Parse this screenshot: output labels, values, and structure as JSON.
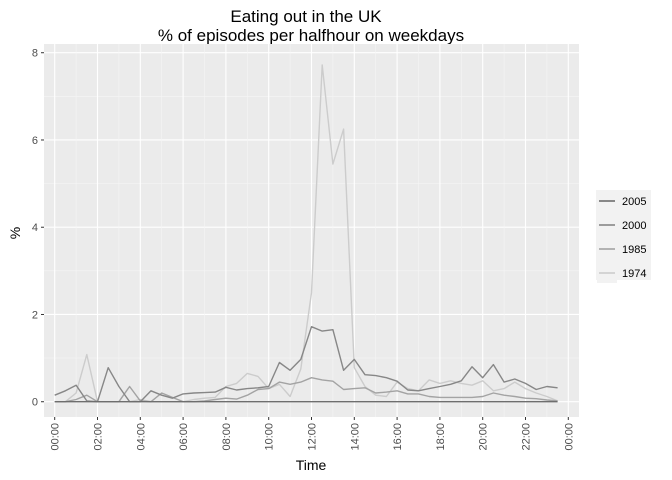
{
  "chart_data": {
    "type": "line",
    "title": "Eating out in the UK",
    "subtitle": "% of episodes per halfhour on weekdays",
    "xlabel": "Time",
    "ylabel": "%",
    "xlim": [
      -0.5,
      24.5
    ],
    "ylim": [
      -0.35,
      8.2
    ],
    "x_ticks": [
      0,
      2,
      4,
      6,
      8,
      10,
      12,
      14,
      16,
      18,
      20,
      22,
      24
    ],
    "x_tick_labels": [
      "00:00",
      "02:00",
      "04:00",
      "06:00",
      "08:00",
      "10:00",
      "12:00",
      "14:00",
      "16:00",
      "18:00",
      "20:00",
      "22:00",
      "00:00"
    ],
    "y_ticks": [
      0,
      2,
      4,
      6,
      8
    ],
    "y_tick_labels": [
      "0",
      "2",
      "4",
      "6",
      "8"
    ],
    "grid": true,
    "legend_position": "right",
    "series": [
      {
        "name": "2005",
        "color": "#6e6e6e",
        "x": [
          0,
          23.5
        ],
        "values": [
          0,
          0
        ]
      },
      {
        "name": "2000",
        "color": "#878787",
        "x": [
          0,
          0.5,
          1,
          1.5,
          2,
          2.5,
          3,
          3.5,
          4,
          4.5,
          5,
          5.5,
          6,
          6.5,
          7,
          7.5,
          8,
          8.5,
          9,
          9.5,
          10,
          10.5,
          11,
          11.5,
          12,
          12.5,
          13,
          13.5,
          14,
          14.5,
          15,
          15.5,
          16,
          16.5,
          17,
          17.5,
          18,
          18.5,
          19,
          19.5,
          20,
          20.5,
          21,
          21.5,
          22,
          22.5,
          23,
          23.5
        ],
        "values": [
          0.15,
          0.25,
          0.38,
          0.02,
          0,
          0.78,
          0.35,
          0,
          0,
          0.25,
          0.15,
          0.08,
          0.18,
          0.2,
          0.21,
          0.22,
          0.33,
          0.27,
          0.3,
          0.32,
          0.35,
          0.9,
          0.72,
          0.97,
          1.72,
          1.62,
          1.65,
          0.72,
          0.97,
          0.62,
          0.6,
          0.55,
          0.47,
          0.27,
          0.25,
          0.3,
          0.35,
          0.4,
          0.48,
          0.8,
          0.55,
          0.85,
          0.45,
          0.52,
          0.42,
          0.28,
          0.35,
          0.32
        ]
      },
      {
        "name": "1985",
        "color": "#a3a3a3",
        "x": [
          0,
          0.5,
          1,
          1.5,
          2,
          2.5,
          3,
          3.5,
          4,
          4.5,
          5,
          5.5,
          6,
          6.5,
          7,
          7.5,
          8,
          8.5,
          9,
          9.5,
          10,
          10.5,
          11,
          11.5,
          12,
          12.5,
          13,
          13.5,
          14,
          14.5,
          15,
          15.5,
          16,
          16.5,
          17,
          17.5,
          18,
          18.5,
          19,
          19.5,
          20,
          20.5,
          21,
          21.5,
          22,
          22.5,
          23,
          23.5
        ],
        "values": [
          0,
          0,
          0.05,
          0.15,
          0,
          0,
          0,
          0.35,
          0.02,
          0,
          0.2,
          0.1,
          0,
          0,
          0.02,
          0.05,
          0.08,
          0.06,
          0.15,
          0.28,
          0.3,
          0.45,
          0.4,
          0.45,
          0.55,
          0.5,
          0.47,
          0.28,
          0.3,
          0.32,
          0.2,
          0.22,
          0.25,
          0.18,
          0.18,
          0.12,
          0.1,
          0.1,
          0.1,
          0.1,
          0.12,
          0.2,
          0.15,
          0.12,
          0.08,
          0.07,
          0.04,
          0.02
        ]
      },
      {
        "name": "1974",
        "color": "#cccccc",
        "x": [
          0,
          0.5,
          1,
          1.5,
          2,
          2.5,
          3,
          3.5,
          4,
          4.5,
          5,
          5.5,
          6,
          6.5,
          7,
          7.5,
          8,
          8.5,
          9,
          9.5,
          10,
          10.5,
          11,
          11.5,
          12,
          12.5,
          13,
          13.5,
          14,
          14.5,
          15,
          15.5,
          16,
          16.5,
          17,
          17.5,
          18,
          18.5,
          19,
          19.5,
          20,
          20.5,
          21,
          21.5,
          22,
          22.5,
          23,
          23.5
        ],
        "values": [
          0,
          0,
          0.2,
          1.08,
          0,
          0,
          0,
          0,
          0.05,
          0,
          0,
          0,
          0,
          0.05,
          0.08,
          0.1,
          0.35,
          0.42,
          0.65,
          0.58,
          0.3,
          0.4,
          0.12,
          0.75,
          2.5,
          7.72,
          5.45,
          6.25,
          0.78,
          0.35,
          0.15,
          0.12,
          0.45,
          0.3,
          0.25,
          0.5,
          0.42,
          0.48,
          0.42,
          0.38,
          0.48,
          0.25,
          0.3,
          0.45,
          0.3,
          0.2,
          0.12,
          0.02
        ]
      }
    ]
  }
}
